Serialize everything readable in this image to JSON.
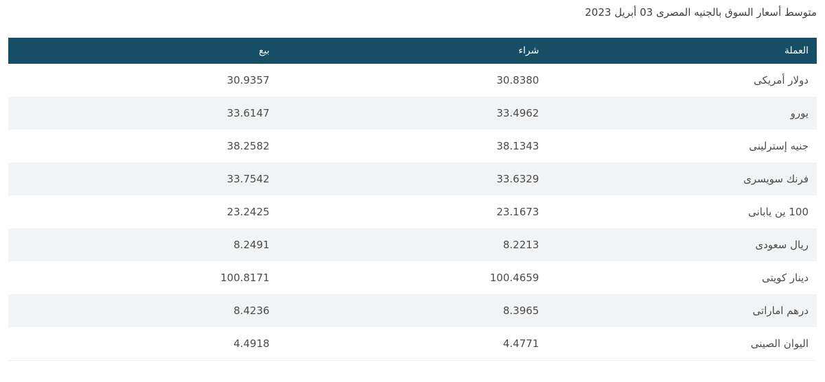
{
  "page": {
    "title": "متوسط أسعار السوق بالجنيه المصرى 03 أبريل 2023"
  },
  "colors": {
    "header_bg": "#164e66",
    "header_text": "#ffffff",
    "stripe_bg": "#f2f3f4",
    "row_bg": "#ffffff",
    "cell_text": "#4b4b4b",
    "title_text": "#3f3f3f"
  },
  "table": {
    "columns": [
      {
        "label": "العملة"
      },
      {
        "label": "شراء"
      },
      {
        "label": "بيع"
      }
    ],
    "rows": [
      {
        "currency": "دولار أمريكى",
        "buy": "30.8380",
        "sell": "30.9357"
      },
      {
        "currency": "يورو",
        "buy": "33.4962",
        "sell": "33.6147"
      },
      {
        "currency": "جنيه إسترلينى",
        "buy": "38.1343",
        "sell": "38.2582"
      },
      {
        "currency": "فرنك سويسرى",
        "buy": "33.6329",
        "sell": "33.7542"
      },
      {
        "currency": "100 ين يابانى",
        "buy": "23.1673",
        "sell": "23.2425"
      },
      {
        "currency": "ريال سعودى",
        "buy": "8.2213",
        "sell": "8.2491"
      },
      {
        "currency": "دينار كويتى",
        "buy": "100.4659",
        "sell": "100.8171"
      },
      {
        "currency": "درهم اماراتى",
        "buy": "8.3965",
        "sell": "8.4236"
      },
      {
        "currency": "اليوان الصينى",
        "buy": "4.4771",
        "sell": "4.4918"
      }
    ]
  },
  "chart_data": {
    "type": "table",
    "title": "متوسط أسعار السوق بالجنيه المصرى 03 أبريل 2023",
    "categories": [
      "دولار أمريكى",
      "يورو",
      "جنيه إسترلينى",
      "فرنك سويسرى",
      "100 ين يابانى",
      "ريال سعودى",
      "دينار كويتى",
      "درهم اماراتى",
      "اليوان الصينى"
    ],
    "series": [
      {
        "name": "شراء",
        "values": [
          30.838,
          33.4962,
          38.1343,
          33.6329,
          23.1673,
          8.2213,
          100.4659,
          8.3965,
          4.4771
        ]
      },
      {
        "name": "بيع",
        "values": [
          30.9357,
          33.6147,
          38.2582,
          33.7542,
          23.2425,
          8.2491,
          100.8171,
          8.4236,
          4.4918
        ]
      }
    ]
  }
}
